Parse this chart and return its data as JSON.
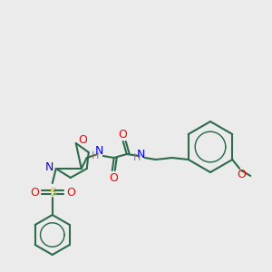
{
  "background_color": "#ebebeb",
  "bond_color": "#2d6b4a",
  "atom_colors": {
    "O": "#ff0000",
    "N": "#0000ff",
    "S": "#cccc00",
    "H": "#808080",
    "C": "#2d6b4a"
  },
  "line_width": 1.5,
  "font_size": 9
}
